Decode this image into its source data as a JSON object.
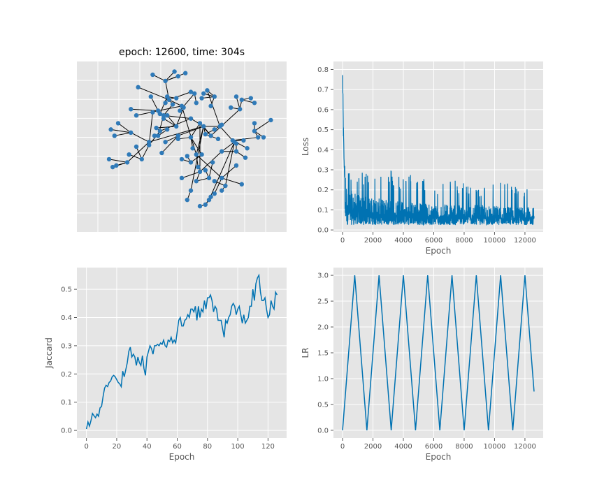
{
  "colors": {
    "series": "#0072b2",
    "node": "#2f7ab8",
    "edge": "#000000",
    "panel": "#e5e5e5"
  },
  "graph_panel": {
    "title": "epoch: 12600, time: 304s"
  },
  "chart_data": [
    {
      "type": "network",
      "title": "epoch: 12600, time: 304s",
      "edges": [
        [
          0,
          1
        ],
        [
          1,
          2
        ],
        [
          1,
          3
        ],
        [
          0,
          4
        ],
        [
          0,
          5
        ],
        [
          5,
          6
        ],
        [
          4,
          7
        ],
        [
          4,
          8
        ],
        [
          4,
          9
        ],
        [
          9,
          10
        ],
        [
          9,
          11
        ],
        [
          9,
          12
        ],
        [
          8,
          13
        ],
        [
          13,
          14
        ],
        [
          13,
          15
        ],
        [
          13,
          16
        ],
        [
          8,
          17
        ],
        [
          17,
          18
        ],
        [
          18,
          19
        ],
        [
          18,
          20
        ],
        [
          18,
          21
        ],
        [
          18,
          22
        ],
        [
          17,
          23
        ],
        [
          17,
          24
        ],
        [
          24,
          25
        ],
        [
          25,
          26
        ],
        [
          25,
          27
        ],
        [
          0,
          28
        ],
        [
          28,
          29
        ],
        [
          29,
          30
        ],
        [
          29,
          31
        ],
        [
          29,
          32
        ],
        [
          28,
          33
        ],
        [
          33,
          34
        ],
        [
          33,
          35
        ],
        [
          33,
          36
        ],
        [
          0,
          37
        ],
        [
          37,
          38
        ],
        [
          38,
          39
        ],
        [
          38,
          40
        ],
        [
          38,
          41
        ],
        [
          41,
          42
        ],
        [
          42,
          43
        ],
        [
          42,
          44
        ],
        [
          42,
          45
        ],
        [
          37,
          46
        ],
        [
          46,
          47
        ],
        [
          47,
          48
        ],
        [
          47,
          49
        ],
        [
          47,
          50
        ],
        [
          0,
          51
        ],
        [
          51,
          52
        ],
        [
          52,
          53
        ],
        [
          53,
          54
        ],
        [
          54,
          55
        ],
        [
          54,
          56
        ],
        [
          53,
          57
        ],
        [
          52,
          58
        ],
        [
          58,
          59
        ],
        [
          59,
          60
        ],
        [
          59,
          61
        ],
        [
          59,
          62
        ],
        [
          51,
          63
        ],
        [
          63,
          64
        ],
        [
          64,
          65
        ],
        [
          64,
          66
        ],
        [
          63,
          67
        ],
        [
          67,
          68
        ],
        [
          68,
          69
        ],
        [
          68,
          70
        ],
        [
          68,
          71
        ],
        [
          0,
          72
        ],
        [
          72,
          73
        ],
        [
          73,
          74
        ],
        [
          73,
          75
        ],
        [
          73,
          76
        ],
        [
          76,
          77
        ],
        [
          76,
          78
        ],
        [
          72,
          79
        ],
        [
          79,
          80
        ],
        [
          80,
          81
        ],
        [
          80,
          82
        ],
        [
          80,
          83
        ],
        [
          83,
          84
        ],
        [
          84,
          85
        ],
        [
          84,
          86
        ],
        [
          79,
          87
        ],
        [
          87,
          88
        ],
        [
          87,
          89
        ],
        [
          89,
          90
        ],
        [
          90,
          91
        ],
        [
          90,
          92
        ],
        [
          87,
          93
        ],
        [
          93,
          94
        ],
        [
          94,
          95
        ],
        [
          94,
          96
        ],
        [
          93,
          97
        ],
        [
          97,
          98
        ],
        [
          98,
          99
        ],
        [
          98,
          100
        ],
        [
          97,
          101
        ],
        [
          101,
          102
        ],
        [
          102,
          103
        ],
        [
          102,
          104
        ],
        [
          0,
          105
        ],
        [
          105,
          106
        ],
        [
          105,
          107
        ],
        [
          106,
          108
        ]
      ],
      "nodes": [
        [
          0.62,
          0.63
        ],
        [
          0.48,
          0.57
        ],
        [
          0.41,
          0.53
        ],
        [
          0.39,
          0.46
        ],
        [
          0.58,
          0.45
        ],
        [
          0.55,
          0.22
        ],
        [
          0.53,
          0.16
        ],
        [
          0.59,
          0.37
        ],
        [
          0.5,
          0.76
        ],
        [
          0.72,
          0.3
        ],
        [
          0.8,
          0.38
        ],
        [
          0.83,
          0.26
        ],
        [
          0.68,
          0.2
        ],
        [
          0.37,
          0.73
        ],
        [
          0.25,
          0.7
        ],
        [
          0.22,
          0.74
        ],
        [
          0.33,
          0.82
        ],
        [
          0.43,
          0.8
        ],
        [
          0.41,
          0.92
        ],
        [
          0.34,
          0.96
        ],
        [
          0.46,
          0.98
        ],
        [
          0.48,
          0.95
        ],
        [
          0.52,
          0.97
        ],
        [
          0.26,
          0.88
        ],
        [
          0.55,
          0.85
        ],
        [
          0.57,
          0.84
        ],
        [
          0.58,
          0.78
        ],
        [
          0.49,
          0.73
        ],
        [
          0.32,
          0.53
        ],
        [
          0.2,
          0.4
        ],
        [
          0.14,
          0.38
        ],
        [
          0.1,
          0.42
        ],
        [
          0.12,
          0.37
        ],
        [
          0.22,
          0.59
        ],
        [
          0.13,
          0.57
        ],
        [
          0.11,
          0.61
        ],
        [
          0.15,
          0.65
        ],
        [
          0.71,
          0.63
        ],
        [
          0.78,
          0.54
        ],
        [
          0.84,
          0.54
        ],
        [
          0.86,
          0.49
        ],
        [
          0.92,
          0.56
        ],
        [
          0.9,
          0.6
        ],
        [
          0.95,
          0.56
        ],
        [
          0.9,
          0.65
        ],
        [
          0.99,
          0.67
        ],
        [
          0.64,
          0.86
        ],
        [
          0.68,
          0.82
        ],
        [
          0.66,
          0.76
        ],
        [
          0.62,
          0.84
        ],
        [
          0.61,
          0.81
        ],
        [
          0.55,
          0.68
        ],
        [
          0.38,
          0.6
        ],
        [
          0.32,
          0.51
        ],
        [
          0.28,
          0.42
        ],
        [
          0.25,
          0.5
        ],
        [
          0.21,
          0.45
        ],
        [
          0.34,
          0.72
        ],
        [
          0.36,
          0.62
        ],
        [
          0.47,
          0.63
        ],
        [
          0.42,
          0.7
        ],
        [
          0.4,
          0.68
        ],
        [
          0.51,
          0.75
        ],
        [
          0.4,
          0.7
        ],
        [
          0.37,
          0.57
        ],
        [
          0.35,
          0.57
        ],
        [
          0.42,
          0.61
        ],
        [
          0.45,
          0.77
        ],
        [
          0.42,
          0.82
        ],
        [
          0.41,
          0.78
        ],
        [
          0.47,
          0.81
        ],
        [
          0.38,
          0.71
        ],
        [
          0.66,
          0.57
        ],
        [
          0.82,
          0.74
        ],
        [
          0.77,
          0.75
        ],
        [
          0.8,
          0.82
        ],
        [
          0.83,
          0.8
        ],
        [
          0.9,
          0.78
        ],
        [
          0.88,
          0.81
        ],
        [
          0.6,
          0.65
        ],
        [
          0.55,
          0.56
        ],
        [
          0.48,
          0.55
        ],
        [
          0.56,
          0.49
        ],
        [
          0.61,
          0.45
        ],
        [
          0.55,
          0.4
        ],
        [
          0.5,
          0.42
        ],
        [
          0.53,
          0.44
        ],
        [
          0.6,
          0.34
        ],
        [
          0.5,
          0.3
        ],
        [
          0.58,
          0.28
        ],
        [
          0.65,
          0.3
        ],
        [
          0.63,
          0.35
        ],
        [
          0.67,
          0.4
        ],
        [
          0.72,
          0.47
        ],
        [
          0.8,
          0.47
        ],
        [
          0.85,
          0.43
        ],
        [
          0.8,
          0.52
        ],
        [
          0.79,
          0.53
        ],
        [
          0.74,
          0.25
        ],
        [
          0.72,
          0.22
        ],
        [
          0.68,
          0.28
        ],
        [
          0.65,
          0.16
        ],
        [
          0.63,
          0.13
        ],
        [
          0.6,
          0.12
        ],
        [
          0.66,
          0.18
        ],
        [
          0.63,
          0.58
        ],
        [
          0.68,
          0.61
        ],
        [
          0.7,
          0.55
        ],
        [
          0.72,
          0.64
        ]
      ]
    },
    {
      "type": "line",
      "xlabel": "Epoch",
      "ylabel": "Loss",
      "xlim": [
        -600,
        13200
      ],
      "ylim": [
        -0.01,
        0.84
      ],
      "xticks": [
        0,
        2000,
        4000,
        6000,
        8000,
        10000,
        12000
      ],
      "yticks": [
        0.0,
        0.1,
        0.2,
        0.3,
        0.4,
        0.5,
        0.6,
        0.7,
        0.8
      ],
      "xticklabels": [
        "0",
        "2000",
        "4000",
        "6000",
        "8000",
        "10000",
        "12000"
      ],
      "yticklabels": [
        "0.0",
        "0.1",
        "0.2",
        "0.3",
        "0.4",
        "0.5",
        "0.6",
        "0.7",
        "0.8"
      ],
      "x_max": 12600,
      "noise_floor": 0.025,
      "envelope": [
        [
          0,
          0.81
        ],
        [
          40,
          0.6
        ],
        [
          100,
          0.35
        ],
        [
          200,
          0.34
        ],
        [
          500,
          0.3
        ],
        [
          1000,
          0.28
        ],
        [
          2000,
          0.3
        ],
        [
          2500,
          0.33
        ],
        [
          4000,
          0.27
        ],
        [
          4500,
          0.28
        ],
        [
          6000,
          0.24
        ],
        [
          7000,
          0.25
        ],
        [
          8000,
          0.24
        ],
        [
          9500,
          0.22
        ],
        [
          10000,
          0.25
        ],
        [
          12000,
          0.22
        ],
        [
          12600,
          0.28
        ]
      ],
      "median": [
        [
          0,
          0.7
        ],
        [
          50,
          0.45
        ],
        [
          150,
          0.2
        ],
        [
          300,
          0.13
        ],
        [
          1000,
          0.11
        ],
        [
          2000,
          0.1
        ],
        [
          4000,
          0.09
        ],
        [
          6000,
          0.08
        ],
        [
          8000,
          0.08
        ],
        [
          10000,
          0.075
        ],
        [
          12600,
          0.07
        ]
      ]
    },
    {
      "type": "line",
      "xlabel": "Epoch",
      "ylabel": "Jaccard",
      "xlim": [
        -6.3,
        132.3
      ],
      "ylim": [
        -0.027,
        0.577
      ],
      "xticks": [
        0,
        20,
        40,
        60,
        80,
        100,
        120
      ],
      "yticks": [
        0.0,
        0.1,
        0.2,
        0.3,
        0.4,
        0.5
      ],
      "xticklabels": [
        "0",
        "20",
        "40",
        "60",
        "80",
        "100",
        "120"
      ],
      "yticklabels": [
        "0.0",
        "0.1",
        "0.2",
        "0.3",
        "0.4",
        "0.5"
      ],
      "x": [
        0,
        1,
        2,
        3,
        4,
        5,
        6,
        7,
        8,
        9,
        10,
        11,
        12,
        13,
        14,
        15,
        16,
        17,
        18,
        19,
        20,
        21,
        22,
        23,
        24,
        25,
        26,
        27,
        28,
        29,
        30,
        31,
        32,
        33,
        34,
        35,
        36,
        37,
        38,
        39,
        40,
        41,
        42,
        43,
        44,
        45,
        46,
        47,
        48,
        49,
        50,
        51,
        52,
        53,
        54,
        55,
        56,
        57,
        58,
        59,
        60,
        61,
        62,
        63,
        64,
        65,
        66,
        67,
        68,
        69,
        70,
        71,
        72,
        73,
        74,
        75,
        76,
        77,
        78,
        79,
        80,
        81,
        82,
        83,
        84,
        85,
        86,
        87,
        88,
        89,
        90,
        91,
        92,
        93,
        94,
        95,
        96,
        97,
        98,
        99,
        100,
        101,
        102,
        103,
        104,
        105,
        106,
        107,
        108,
        109,
        110,
        111,
        112,
        113,
        114,
        115,
        116,
        117,
        118,
        119,
        120,
        121,
        122,
        123,
        124,
        125,
        126
      ],
      "y": [
        0.005,
        0.03,
        0.015,
        0.035,
        0.06,
        0.052,
        0.045,
        0.058,
        0.05,
        0.08,
        0.085,
        0.12,
        0.15,
        0.16,
        0.155,
        0.17,
        0.175,
        0.19,
        0.195,
        0.19,
        0.18,
        0.17,
        0.165,
        0.155,
        0.21,
        0.19,
        0.215,
        0.24,
        0.28,
        0.295,
        0.26,
        0.27,
        0.26,
        0.23,
        0.26,
        0.24,
        0.23,
        0.265,
        0.22,
        0.195,
        0.26,
        0.28,
        0.3,
        0.29,
        0.27,
        0.3,
        0.3,
        0.305,
        0.3,
        0.31,
        0.305,
        0.32,
        0.3,
        0.295,
        0.32,
        0.315,
        0.33,
        0.31,
        0.32,
        0.31,
        0.35,
        0.39,
        0.4,
        0.37,
        0.37,
        0.39,
        0.395,
        0.41,
        0.4,
        0.43,
        0.43,
        0.42,
        0.44,
        0.39,
        0.44,
        0.4,
        0.43,
        0.42,
        0.46,
        0.43,
        0.47,
        0.47,
        0.48,
        0.46,
        0.42,
        0.44,
        0.43,
        0.39,
        0.39,
        0.39,
        0.36,
        0.33,
        0.39,
        0.38,
        0.4,
        0.41,
        0.44,
        0.45,
        0.44,
        0.41,
        0.43,
        0.44,
        0.41,
        0.38,
        0.41,
        0.38,
        0.39,
        0.4,
        0.44,
        0.44,
        0.5,
        0.46,
        0.52,
        0.54,
        0.55,
        0.49,
        0.46,
        0.46,
        0.47,
        0.43,
        0.4,
        0.41,
        0.46,
        0.44,
        0.43,
        0.49,
        0.48
      ]
    },
    {
      "type": "line",
      "xlabel": "Epoch",
      "ylabel": "LR",
      "xlim": [
        -600,
        13200
      ],
      "ylim": [
        -0.15,
        3.15
      ],
      "xticks": [
        0,
        2000,
        4000,
        6000,
        8000,
        10000,
        12000
      ],
      "yticks": [
        0.0,
        0.5,
        1.0,
        1.5,
        2.0,
        2.5,
        3.0
      ],
      "xticklabels": [
        "0",
        "2000",
        "4000",
        "6000",
        "8000",
        "10000",
        "12000"
      ],
      "yticklabels": [
        "0.0",
        "0.5",
        "1.0",
        "1.5",
        "2.0",
        "2.5",
        "3.0"
      ],
      "x": [
        0,
        800,
        1600,
        2400,
        3200,
        4000,
        4800,
        5600,
        6400,
        7200,
        8000,
        8800,
        9600,
        10400,
        11200,
        12000,
        12600
      ],
      "y": [
        0,
        3,
        0,
        3,
        0,
        3,
        0,
        3,
        0,
        3,
        0,
        3,
        0,
        3,
        0,
        3,
        0.75
      ]
    }
  ]
}
